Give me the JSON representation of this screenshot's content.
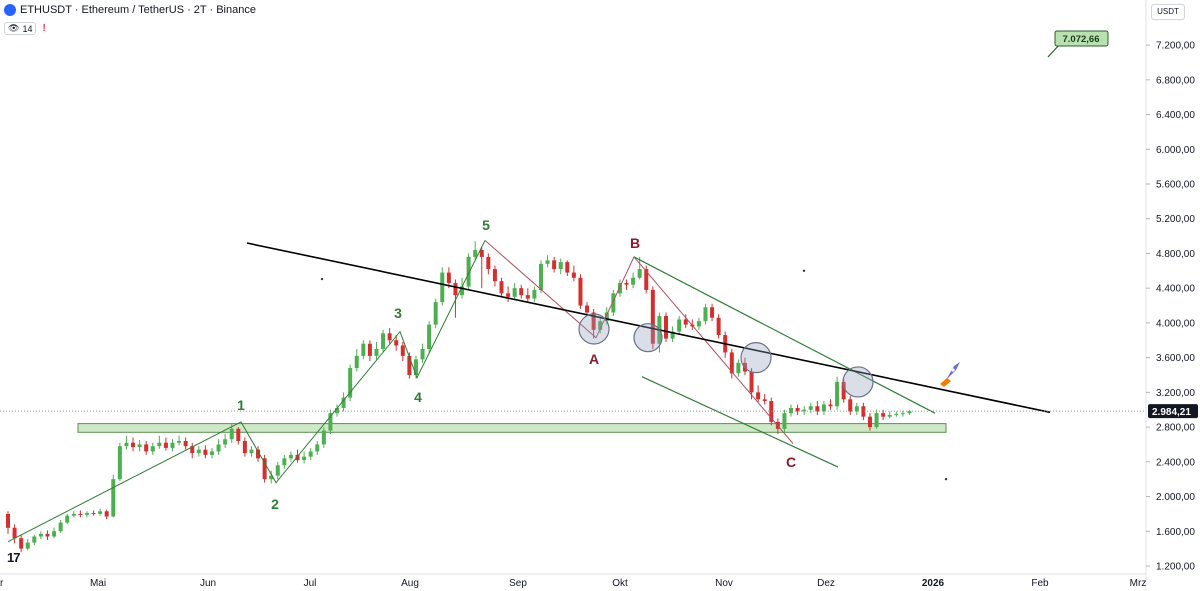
{
  "header": {
    "title": "ETHUSDT · Ethereum / TetherUS · 2T · Binance",
    "indicator_count": "14",
    "alert_icon": "exclamation-icon"
  },
  "currency_button": "USDT",
  "colors": {
    "up": "#4caf50",
    "down": "#d32f2f",
    "wave_green": "#2e7d32",
    "wave_red": "#8b1a2b",
    "support_zone": "#cfe8c8",
    "trendline": "#000000"
  },
  "chart_data": {
    "type": "candlestick",
    "symbol": "ETHUSDT",
    "timeframe": "2T",
    "exchange": "Binance",
    "y_axis": {
      "ticks": [
        "7.200,00",
        "6.800,00",
        "6.400,00",
        "6.000,00",
        "5.600,00",
        "5.200,00",
        "4.800,00",
        "4.400,00",
        "4.000,00",
        "3.600,00",
        "3.200,00",
        "2.800,00",
        "2.400,00",
        "2.000,00",
        "1.600,00",
        "1.200,00"
      ],
      "range": [
        1100,
        7600
      ]
    },
    "x_axis": {
      "ticks": [
        "r",
        "Mai",
        "Jun",
        "Jul",
        "Aug",
        "Sep",
        "Okt",
        "Nov",
        "Dez",
        "2026",
        "Feb",
        "Mrz"
      ],
      "bold_tick": "2026"
    },
    "current_price": "2.984,21",
    "current_price_value": 2984.21,
    "target_label": "7.072,66",
    "target_value": 7072.66,
    "support_zone": {
      "low": 2740,
      "high": 2840
    },
    "wave_labels": [
      "1",
      "2",
      "3",
      "4",
      "5",
      "A",
      "B",
      "C"
    ],
    "candles": [
      [
        1800,
        1640,
        1830,
        1570
      ],
      [
        1640,
        1520,
        1680,
        1460
      ],
      [
        1520,
        1400,
        1560,
        1360
      ],
      [
        1400,
        1470,
        1510,
        1380
      ],
      [
        1470,
        1540,
        1560,
        1440
      ],
      [
        1540,
        1570,
        1600,
        1510
      ],
      [
        1570,
        1540,
        1610,
        1500
      ],
      [
        1540,
        1600,
        1640,
        1520
      ],
      [
        1600,
        1700,
        1730,
        1580
      ],
      [
        1700,
        1780,
        1800,
        1680
      ],
      [
        1780,
        1800,
        1830,
        1760
      ],
      [
        1800,
        1790,
        1840,
        1760
      ],
      [
        1790,
        1810,
        1830,
        1760
      ],
      [
        1810,
        1800,
        1840,
        1780
      ],
      [
        1800,
        1830,
        1860,
        1780
      ],
      [
        1830,
        1770,
        1850,
        1740
      ],
      [
        1770,
        2200,
        2250,
        1760
      ],
      [
        2200,
        2580,
        2620,
        2180
      ],
      [
        2580,
        2620,
        2700,
        2540
      ],
      [
        2620,
        2570,
        2680,
        2520
      ],
      [
        2570,
        2600,
        2650,
        2520
      ],
      [
        2600,
        2520,
        2640,
        2480
      ],
      [
        2520,
        2580,
        2620,
        2480
      ],
      [
        2580,
        2620,
        2700,
        2550
      ],
      [
        2620,
        2560,
        2680,
        2530
      ],
      [
        2560,
        2620,
        2660,
        2520
      ],
      [
        2620,
        2640,
        2700,
        2590
      ],
      [
        2640,
        2580,
        2680,
        2540
      ],
      [
        2580,
        2500,
        2620,
        2440
      ],
      [
        2500,
        2540,
        2580,
        2460
      ],
      [
        2540,
        2480,
        2590,
        2440
      ],
      [
        2480,
        2520,
        2560,
        2440
      ],
      [
        2520,
        2600,
        2660,
        2480
      ],
      [
        2600,
        2660,
        2720,
        2560
      ],
      [
        2660,
        2780,
        2840,
        2620
      ],
      [
        2780,
        2640,
        2800,
        2600
      ],
      [
        2640,
        2500,
        2680,
        2460
      ],
      [
        2500,
        2540,
        2580,
        2460
      ],
      [
        2540,
        2440,
        2580,
        2400
      ],
      [
        2440,
        2200,
        2480,
        2160
      ],
      [
        2200,
        2240,
        2300,
        2150
      ],
      [
        2240,
        2360,
        2400,
        2200
      ],
      [
        2360,
        2440,
        2480,
        2320
      ],
      [
        2440,
        2480,
        2520,
        2400
      ],
      [
        2480,
        2420,
        2540,
        2390
      ],
      [
        2420,
        2460,
        2520,
        2380
      ],
      [
        2460,
        2520,
        2560,
        2420
      ],
      [
        2520,
        2600,
        2640,
        2480
      ],
      [
        2600,
        2760,
        2800,
        2560
      ],
      [
        2760,
        2960,
        3000,
        2720
      ],
      [
        2960,
        3020,
        3060,
        2920
      ],
      [
        3020,
        3140,
        3200,
        2980
      ],
      [
        3140,
        3480,
        3520,
        3100
      ],
      [
        3480,
        3620,
        3700,
        3440
      ],
      [
        3620,
        3760,
        3800,
        3580
      ],
      [
        3760,
        3620,
        3800,
        3560
      ],
      [
        3620,
        3700,
        3780,
        3580
      ],
      [
        3700,
        3880,
        3920,
        3660
      ],
      [
        3880,
        3800,
        3940,
        3760
      ],
      [
        3800,
        3740,
        3860,
        3680
      ],
      [
        3740,
        3620,
        3780,
        3560
      ],
      [
        3620,
        3400,
        3660,
        3360
      ],
      [
        3400,
        3580,
        3620,
        3360
      ],
      [
        3580,
        3700,
        3760,
        3540
      ],
      [
        3700,
        3980,
        4020,
        3660
      ],
      [
        3980,
        4240,
        4280,
        3940
      ],
      [
        4240,
        4580,
        4640,
        4200
      ],
      [
        4580,
        4460,
        4640,
        4400
      ],
      [
        4460,
        4320,
        4500,
        4060
      ],
      [
        4320,
        4420,
        4520,
        4280
      ],
      [
        4420,
        4760,
        4800,
        4380
      ],
      [
        4760,
        4840,
        4940,
        4720
      ],
      [
        4840,
        4760,
        4880,
        4400
      ],
      [
        4760,
        4620,
        4800,
        4560
      ],
      [
        4620,
        4480,
        4660,
        4420
      ],
      [
        4480,
        4340,
        4520,
        4300
      ],
      [
        4340,
        4300,
        4420,
        4240
      ],
      [
        4300,
        4400,
        4460,
        4260
      ],
      [
        4400,
        4320,
        4440,
        4280
      ],
      [
        4320,
        4280,
        4400,
        4240
      ],
      [
        4280,
        4380,
        4420,
        4240
      ],
      [
        4380,
        4680,
        4720,
        4340
      ],
      [
        4680,
        4720,
        4780,
        4640
      ],
      [
        4720,
        4620,
        4760,
        4580
      ],
      [
        4620,
        4700,
        4740,
        4560
      ],
      [
        4700,
        4580,
        4720,
        4540
      ],
      [
        4580,
        4520,
        4660,
        4480
      ],
      [
        4520,
        4200,
        4560,
        4160
      ],
      [
        4200,
        4120,
        4240,
        4080
      ],
      [
        4120,
        3920,
        4160,
        3820
      ],
      [
        3920,
        4020,
        4060,
        3880
      ],
      [
        4020,
        4120,
        4180,
        3980
      ],
      [
        4120,
        4340,
        4380,
        4080
      ],
      [
        4340,
        4460,
        4500,
        4300
      ],
      [
        4460,
        4440,
        4500,
        4380
      ],
      [
        4440,
        4520,
        4580,
        4400
      ],
      [
        4520,
        4620,
        4760,
        4500
      ],
      [
        4620,
        4380,
        4660,
        4340
      ],
      [
        4380,
        3760,
        4420,
        3700
      ],
      [
        3760,
        4080,
        4120,
        3660
      ],
      [
        4080,
        3820,
        4120,
        3780
      ],
      [
        3820,
        3900,
        3960,
        3780
      ],
      [
        3900,
        4040,
        4080,
        3860
      ],
      [
        4040,
        3980,
        4100,
        3940
      ],
      [
        3980,
        3960,
        4040,
        3920
      ],
      [
        3960,
        4020,
        4060,
        3920
      ],
      [
        4020,
        4180,
        4220,
        3980
      ],
      [
        4180,
        4060,
        4220,
        4020
      ],
      [
        4060,
        3860,
        4100,
        3820
      ],
      [
        3860,
        3660,
        3900,
        3600
      ],
      [
        3660,
        3420,
        3700,
        3360
      ],
      [
        3420,
        3540,
        3580,
        3380
      ],
      [
        3540,
        3440,
        3600,
        3400
      ],
      [
        3440,
        3200,
        3480,
        3120
      ],
      [
        3200,
        3120,
        3280,
        3080
      ],
      [
        3120,
        3100,
        3180,
        3060
      ],
      [
        3100,
        2860,
        3140,
        2820
      ],
      [
        2860,
        2780,
        2900,
        2720
      ],
      [
        2780,
        2960,
        3000,
        2740
      ],
      [
        2960,
        3020,
        3060,
        2920
      ],
      [
        3020,
        2980,
        3060,
        2940
      ],
      [
        2980,
        3000,
        3040,
        2940
      ],
      [
        3000,
        3040,
        3080,
        2960
      ],
      [
        3040,
        2980,
        3100,
        2940
      ],
      [
        2980,
        3060,
        3100,
        2940
      ],
      [
        3060,
        3040,
        3120,
        3000
      ],
      [
        3040,
        3320,
        3380,
        3000
      ],
      [
        3320,
        3120,
        3360,
        3080
      ],
      [
        3120,
        2980,
        3160,
        2940
      ],
      [
        2980,
        3040,
        3080,
        2940
      ],
      [
        3040,
        2920,
        3080,
        2880
      ],
      [
        2920,
        2800,
        2960,
        2760
      ],
      [
        2800,
        2960,
        3000,
        2780
      ],
      [
        2960,
        2920,
        3000,
        2880
      ],
      [
        2920,
        2940,
        2980,
        2900
      ],
      [
        2940,
        2950,
        2980,
        2920
      ],
      [
        2950,
        2960,
        2990,
        2920
      ],
      [
        2960,
        2984,
        3000,
        2940
      ]
    ]
  }
}
